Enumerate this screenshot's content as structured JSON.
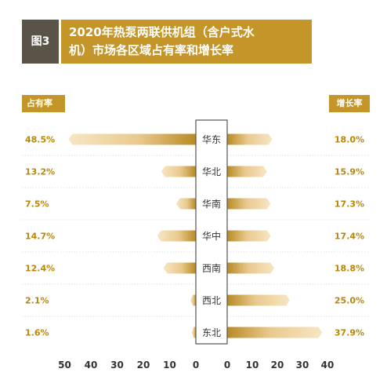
{
  "header": {
    "figure_label": "图3",
    "title_line1": "2020年热泵两联供机组（含户式水",
    "title_line2": "机）市场各区域占有率和增长率"
  },
  "colors": {
    "accent": "#c4962a",
    "badge": "#5a5448",
    "bar_light": "#f3ddb4",
    "bar_dark": "#c4962a",
    "value_text": "#b8860b"
  },
  "chart_data": {
    "type": "bar",
    "layout": "butterfly",
    "categories": [
      "华东",
      "华北",
      "华南",
      "华中",
      "西南",
      "西北",
      "东北"
    ],
    "series": [
      {
        "name": "占有率",
        "values": [
          48.5,
          13.2,
          7.5,
          14.7,
          12.4,
          2.1,
          1.6
        ],
        "labels": [
          "48.5%",
          "13.2%",
          "7.5%",
          "14.7%",
          "12.4%",
          "2.1%",
          "1.6%"
        ]
      },
      {
        "name": "增长率",
        "values": [
          18.0,
          15.9,
          17.3,
          17.4,
          18.8,
          25.0,
          37.9
        ],
        "labels": [
          "18.0%",
          "15.9%",
          "17.3%",
          "17.4%",
          "18.8%",
          "25.0%",
          "37.9%"
        ]
      }
    ],
    "left_ticks": [
      "50",
      "40",
      "30",
      "20",
      "10",
      "0"
    ],
    "right_ticks": [
      "0",
      "10",
      "20",
      "30",
      "40"
    ],
    "left_range": [
      0,
      50
    ],
    "right_range": [
      0,
      40
    ]
  }
}
